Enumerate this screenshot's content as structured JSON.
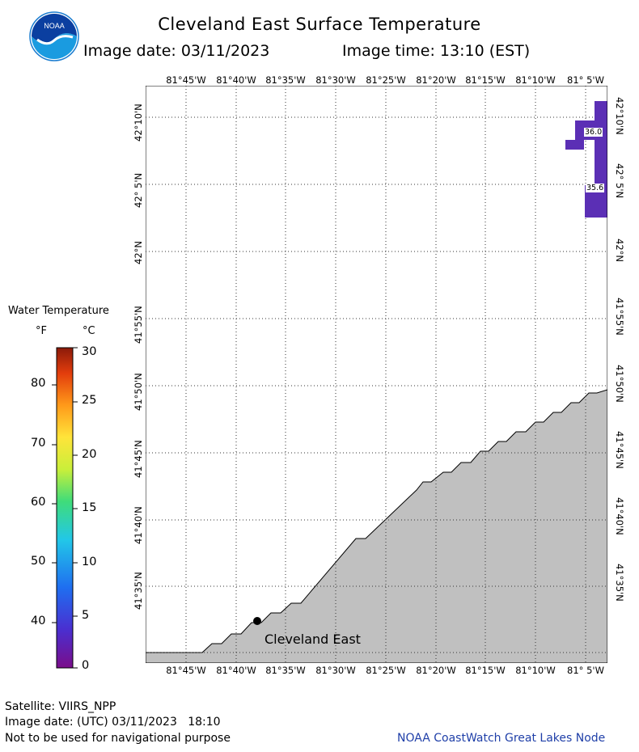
{
  "title": "Cleveland East Surface Temperature",
  "image_date_label": "Image date: 03/11/2023",
  "image_time_label": "Image time: 13:10 (EST)",
  "logo_text": "NOAA",
  "lon_labels": [
    "81°45'W",
    "81°40'W",
    "81°35'W",
    "81°30'W",
    "81°25'W",
    "81°20'W",
    "81°15'W",
    "81°10'W",
    "81° 5'W"
  ],
  "lat_labels": [
    "42°10'N",
    "42° 5'N",
    "42°N",
    "41°55'N",
    "41°50'N",
    "41°45'N",
    "41°40'N",
    "41°35'N"
  ],
  "legend": {
    "title": "Water Temperature",
    "unit_f": "°F",
    "unit_c": "°C",
    "f_ticks": [
      "80",
      "70",
      "60",
      "50",
      "40"
    ],
    "c_ticks": [
      "30",
      "25",
      "20",
      "15",
      "10",
      "5",
      "0"
    ]
  },
  "station_label": "Cleveland East",
  "temp_labels": [
    "36.0",
    "35.6"
  ],
  "footer": {
    "satellite": "Satellite: VIIRS_NPP",
    "image_date_utc": "Image date: (UTC) 03/11/2023   18:10",
    "disclaimer": "Not to be used for navigational purpose",
    "credit": "NOAA CoastWatch Great Lakes Node"
  },
  "colors": {
    "land": "#c0c0c0",
    "water_cold": "#5b2fb5",
    "credit_text": "#1f3fa8",
    "noaa_blue": "#1a7cd0"
  }
}
